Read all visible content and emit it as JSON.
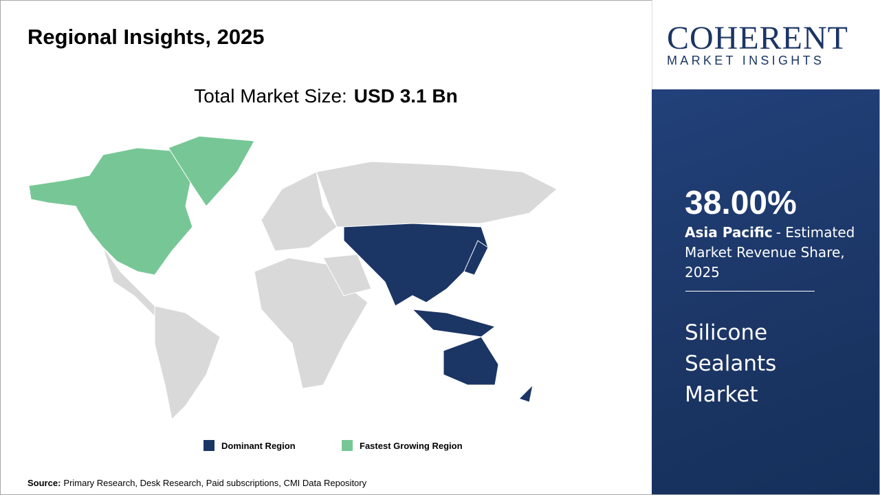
{
  "header": {
    "title": "Regional Insights, 2025"
  },
  "market_size": {
    "label": "Total Market Size:",
    "value": "USD 3.1 Bn"
  },
  "legend": [
    {
      "label": "Dominant Region",
      "color": "#1b3564"
    },
    {
      "label": "Fastest Growing Region",
      "color": "#77c796"
    }
  ],
  "source": {
    "label": "Source:",
    "text": "Primary Research, Desk Research, Paid subscriptions, CMI Data Repository"
  },
  "logo": {
    "name": "COHERENT",
    "tagline": "MARKET INSIGHTS"
  },
  "highlight": {
    "share": "38.00%",
    "region": "Asia Pacific",
    "description": "- Estimated Market Revenue Share, 2025",
    "market": "Silicone Sealants Market"
  }
}
